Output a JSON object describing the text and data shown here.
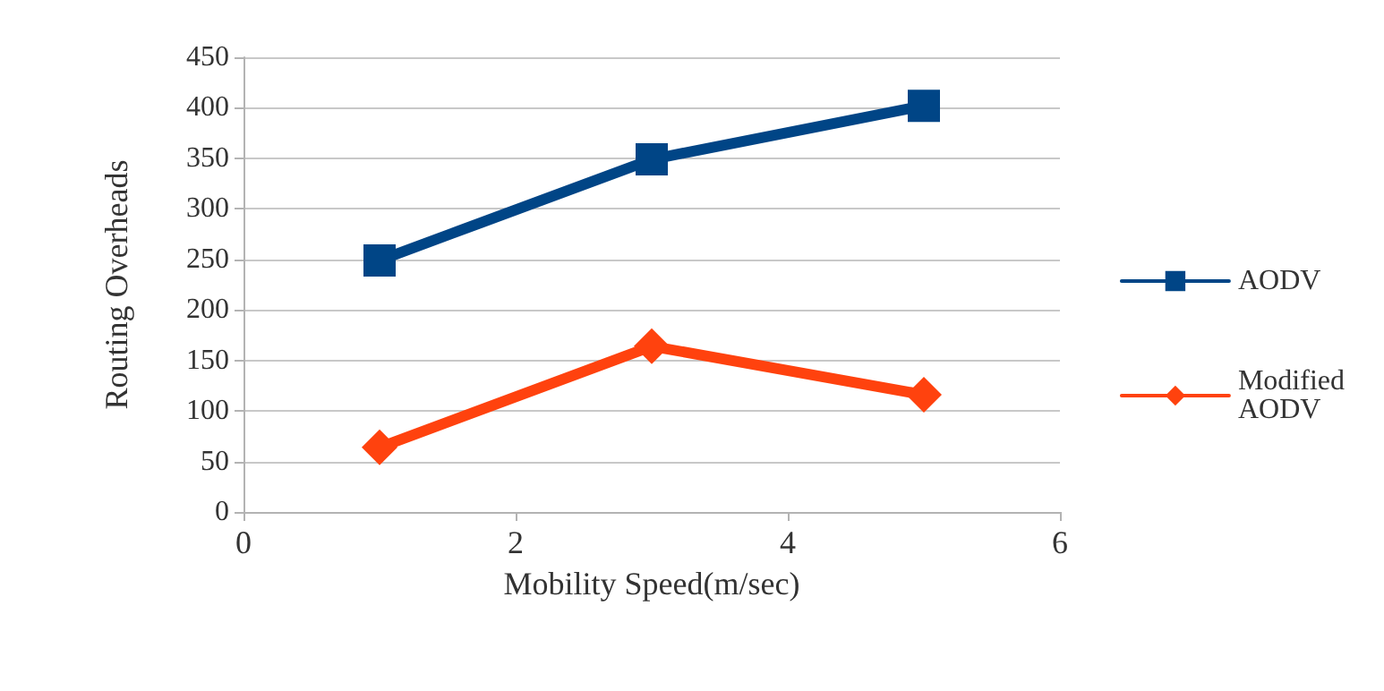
{
  "chart_data": {
    "type": "line",
    "xlabel": "Mobility Speed(m/sec)",
    "ylabel": "Routing Overheads",
    "x": [
      1,
      3,
      5
    ],
    "series": [
      {
        "name": "AODV",
        "color": "#004586",
        "values": [
          249,
          349,
          402
        ],
        "marker": "square"
      },
      {
        "name": "Modified AODV",
        "color": "#ff420e",
        "values": [
          64,
          164,
          116
        ],
        "marker": "diamond"
      }
    ],
    "xlim": [
      0,
      6
    ],
    "xticks": [
      0,
      2,
      4,
      6
    ],
    "ylim": [
      0,
      450
    ],
    "yticks": [
      0,
      50,
      100,
      150,
      200,
      250,
      300,
      350,
      400,
      450
    ],
    "grid": "y",
    "legend": "right",
    "line_style": "solid"
  }
}
